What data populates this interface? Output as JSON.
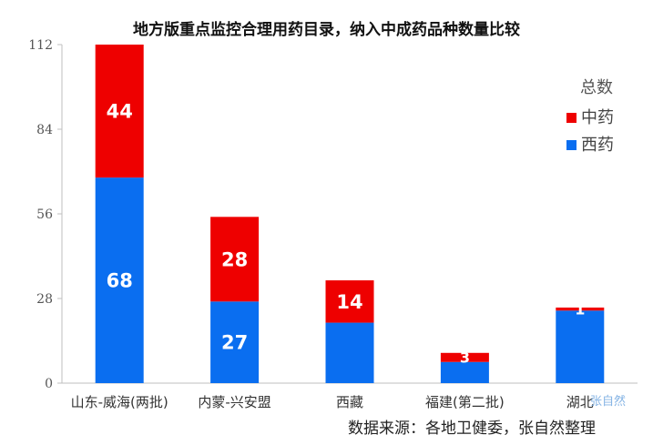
{
  "chart_data": {
    "type": "bar",
    "stacked": true,
    "title": "地方版重点监控合理用药目录，纳入中成药品种数量比较",
    "categories": [
      "山东-威海(两批)",
      "内蒙-兴安盟",
      "西藏",
      "福建(第二批)",
      "湖北"
    ],
    "series": [
      {
        "name": "西药",
        "color": "#0a6ef0",
        "values": [
          68,
          27,
          20,
          7,
          24
        ],
        "labels": [
          "68",
          "27",
          "",
          "",
          ""
        ]
      },
      {
        "name": "中药",
        "color": "#ee0000",
        "values": [
          44,
          28,
          14,
          3,
          1
        ],
        "labels": [
          "44",
          "28",
          "14",
          "3",
          "1"
        ]
      }
    ],
    "ylim": [
      0,
      112
    ],
    "yticks": [
      "0",
      "28",
      "56",
      "84",
      "112"
    ],
    "legend_title": "总数",
    "legend_placement": "right",
    "grid": false,
    "xlabel": "",
    "ylabel": ""
  },
  "source_note": "数据来源：各地卫健委，张自然整理",
  "watermark": "张自然"
}
